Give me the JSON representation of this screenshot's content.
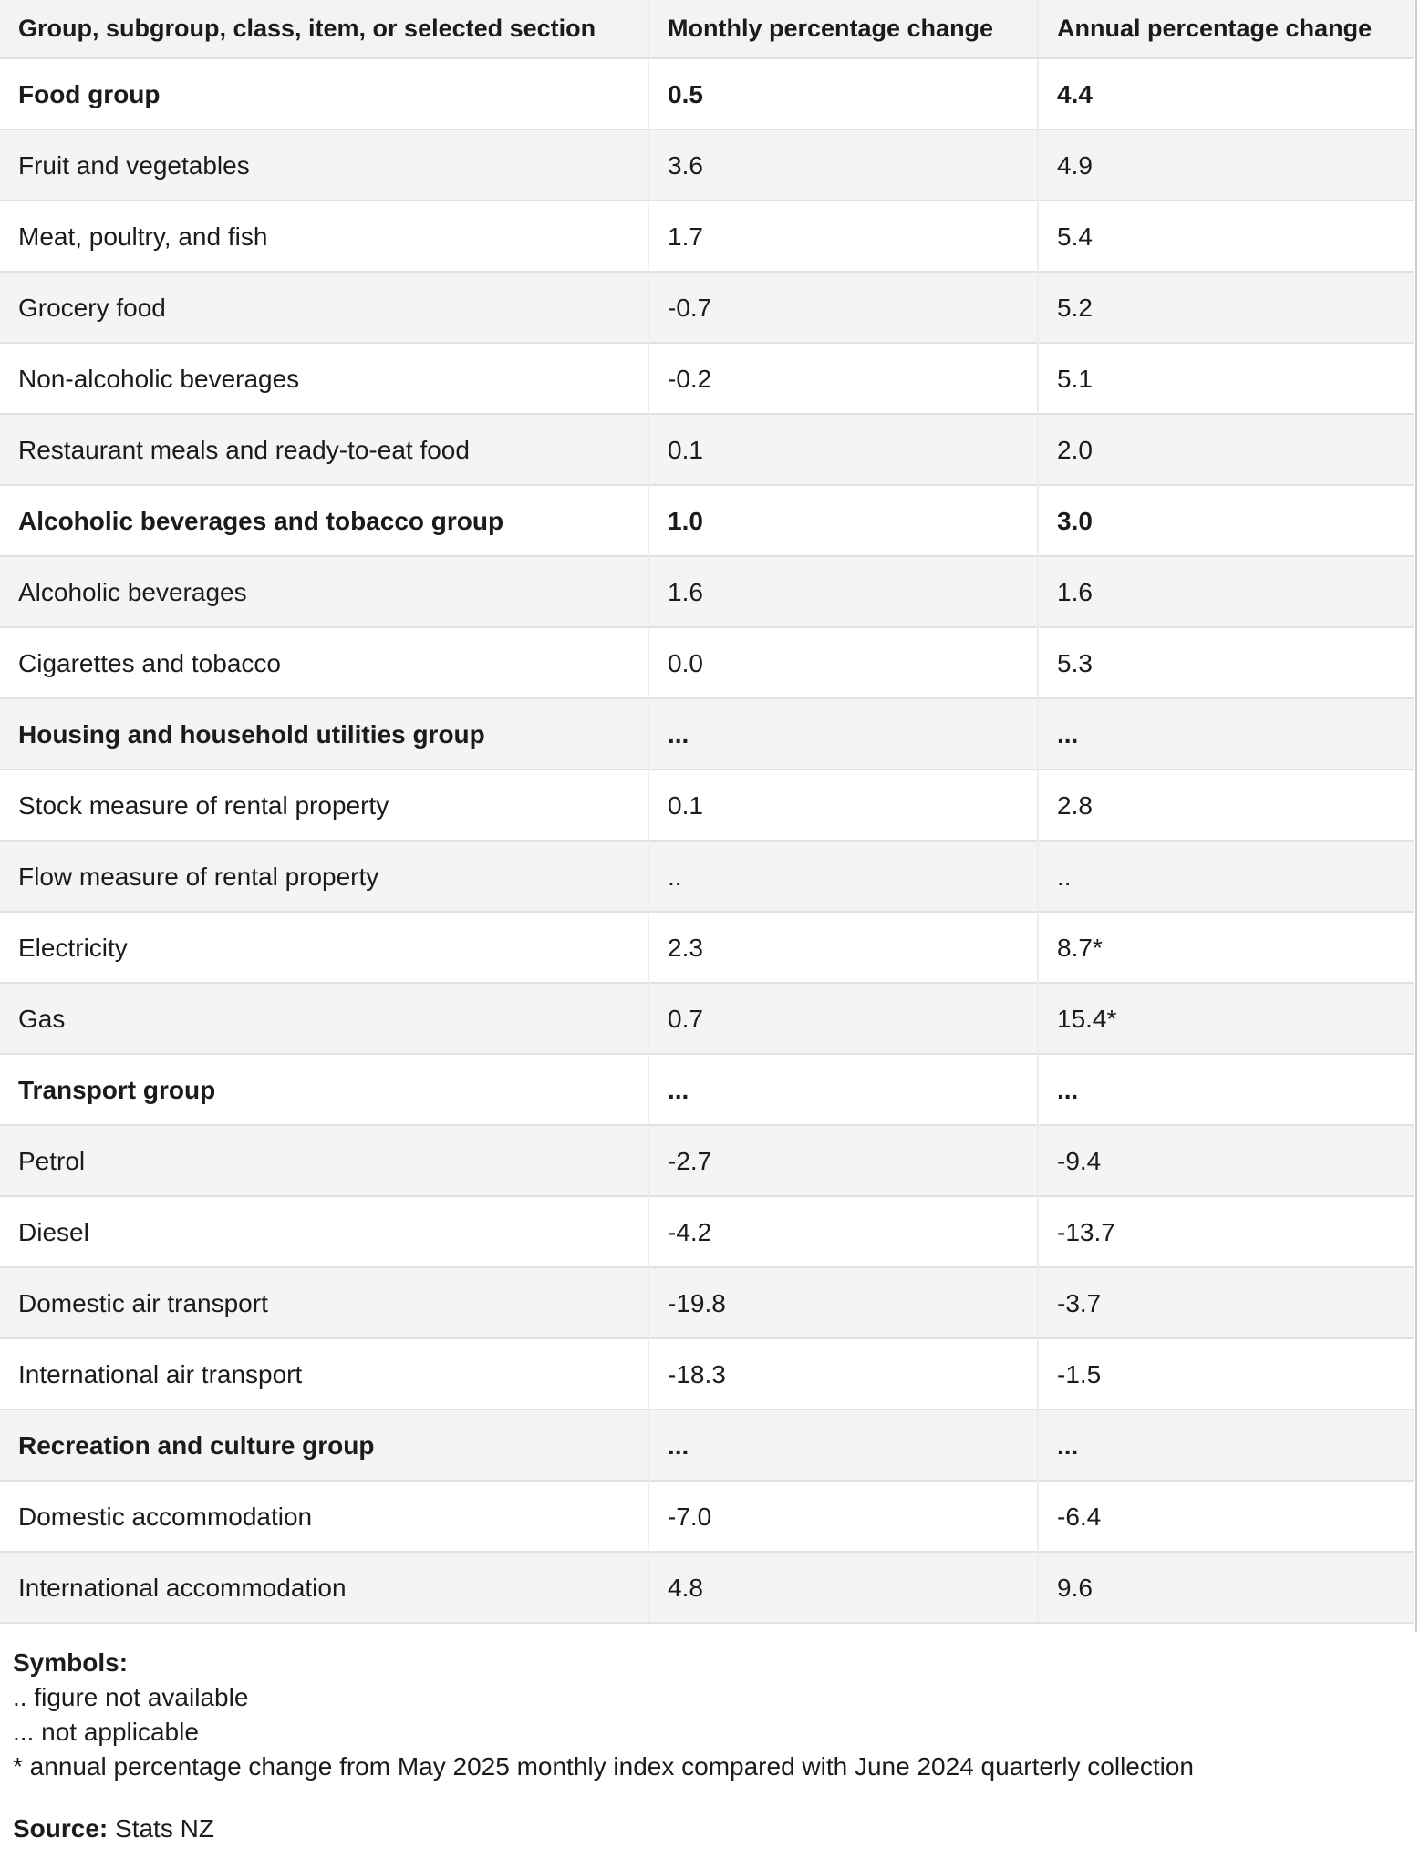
{
  "chart_data": {
    "type": "table",
    "title": "",
    "columns": [
      "Group, subgroup, class, item, or selected section",
      "Monthly percentage change",
      "Annual percentage change"
    ],
    "rows": [
      {
        "label": "Food group",
        "monthly": "0.5",
        "annual": "4.4",
        "bold": true
      },
      {
        "label": "Fruit and vegetables",
        "monthly": "3.6",
        "annual": "4.9",
        "bold": false
      },
      {
        "label": "Meat, poultry, and fish",
        "monthly": "1.7",
        "annual": "5.4",
        "bold": false
      },
      {
        "label": "Grocery food",
        "monthly": "-0.7",
        "annual": "5.2",
        "bold": false
      },
      {
        "label": "Non-alcoholic beverages",
        "monthly": "-0.2",
        "annual": "5.1",
        "bold": false
      },
      {
        "label": "Restaurant meals and ready-to-eat food",
        "monthly": "0.1",
        "annual": "2.0",
        "bold": false
      },
      {
        "label": "Alcoholic beverages and tobacco group",
        "monthly": "1.0",
        "annual": "3.0",
        "bold": true
      },
      {
        "label": "Alcoholic beverages",
        "monthly": "1.6",
        "annual": "1.6",
        "bold": false
      },
      {
        "label": "Cigarettes and tobacco",
        "monthly": "0.0",
        "annual": "5.3",
        "bold": false
      },
      {
        "label": "Housing and household utilities group",
        "monthly": "...",
        "annual": "...",
        "bold": true
      },
      {
        "label": "Stock measure of rental property",
        "monthly": "0.1",
        "annual": "2.8",
        "bold": false
      },
      {
        "label": "Flow measure of rental property",
        "monthly": "..",
        "annual": "..",
        "bold": false
      },
      {
        "label": "Electricity",
        "monthly": "2.3",
        "annual": "8.7*",
        "bold": false
      },
      {
        "label": "Gas",
        "monthly": "0.7",
        "annual": "15.4*",
        "bold": false
      },
      {
        "label": "Transport group",
        "monthly": "...",
        "annual": "...",
        "bold": true
      },
      {
        "label": "Petrol",
        "monthly": "-2.7",
        "annual": "-9.4",
        "bold": false
      },
      {
        "label": "Diesel",
        "monthly": "-4.2",
        "annual": "-13.7",
        "bold": false
      },
      {
        "label": "Domestic air transport",
        "monthly": "-19.8",
        "annual": "-3.7",
        "bold": false
      },
      {
        "label": "International air transport",
        "monthly": "-18.3",
        "annual": "-1.5",
        "bold": false
      },
      {
        "label": "Recreation and culture group",
        "monthly": "...",
        "annual": "...",
        "bold": true
      },
      {
        "label": "Domestic accommodation",
        "monthly": "-7.0",
        "annual": "-6.4",
        "bold": false
      },
      {
        "label": "International accommodation",
        "monthly": "4.8",
        "annual": "9.6",
        "bold": false
      }
    ],
    "footnotes": {
      "symbols_heading": "Symbols:",
      "lines": [
        ".. figure not available",
        "... not applicable",
        "* annual percentage change from May 2025 monthly index compared with June 2024 quarterly collection"
      ],
      "source_label": "Source:",
      "source_value": " Stats NZ"
    }
  },
  "colors": {
    "header_bg": "#f3f3f3",
    "stripe_bg": "#f4f4f4",
    "row_border": "#e1e1e2",
    "col_border": "#ededee",
    "text": "#1b1b1b",
    "scrollbar": "#cfcfd1"
  }
}
